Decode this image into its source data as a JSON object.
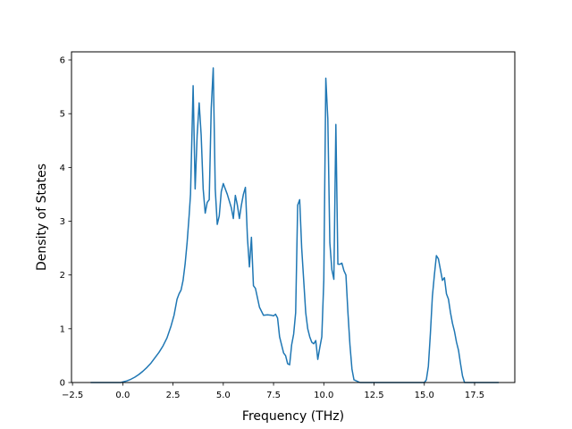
{
  "chart_data": {
    "type": "line",
    "title": "",
    "xlabel": "Frequency (THz)",
    "ylabel": "Density of States",
    "xlim": [
      -2.55,
      19.5
    ],
    "ylim": [
      0,
      6.15
    ],
    "grid": false,
    "legend": "none",
    "line_color": "#1f77b4",
    "xticks": [
      -2.5,
      0.0,
      2.5,
      5.0,
      7.5,
      10.0,
      12.5,
      15.0,
      17.5
    ],
    "xtick_labels": [
      "−2.5",
      "0.0",
      "2.5",
      "5.0",
      "7.5",
      "10.0",
      "12.5",
      "15.0",
      "17.5"
    ],
    "yticks": [
      0,
      1,
      2,
      3,
      4,
      5,
      6
    ],
    "ytick_labels": [
      "0",
      "1",
      "2",
      "3",
      "4",
      "5",
      "6"
    ],
    "series": [
      {
        "x": [
          -1.6,
          -1.0,
          -0.5,
          -0.1,
          0.0,
          0.2,
          0.4,
          0.6,
          0.8,
          1.0,
          1.2,
          1.4,
          1.6,
          1.8,
          2.0,
          2.2,
          2.4,
          2.55,
          2.7,
          2.8,
          2.9,
          3.0,
          3.1,
          3.2,
          3.3,
          3.37,
          3.5,
          3.6,
          3.7,
          3.8,
          3.9,
          4.0,
          4.1,
          4.2,
          4.3,
          4.4,
          4.5,
          4.6,
          4.7,
          4.8,
          4.9,
          5.0,
          5.2,
          5.4,
          5.5,
          5.6,
          5.7,
          5.8,
          5.9,
          6.0,
          6.1,
          6.2,
          6.3,
          6.4,
          6.5,
          6.6,
          6.8,
          7.0,
          7.2,
          7.4,
          7.5,
          7.6,
          7.7,
          7.8,
          7.9,
          8.0,
          8.1,
          8.2,
          8.3,
          8.4,
          8.5,
          8.6,
          8.7,
          8.8,
          8.9,
          9.0,
          9.1,
          9.2,
          9.3,
          9.4,
          9.5,
          9.6,
          9.7,
          9.8,
          9.9,
          10.0,
          10.1,
          10.2,
          10.3,
          10.4,
          10.5,
          10.6,
          10.7,
          10.8,
          10.9,
          11.0,
          11.1,
          11.2,
          11.3,
          11.4,
          11.5,
          11.8,
          12.5,
          13.5,
          14.5,
          15.0,
          15.1,
          15.2,
          15.3,
          15.4,
          15.5,
          15.6,
          15.7,
          15.8,
          15.9,
          16.0,
          16.1,
          16.2,
          16.3,
          16.4,
          16.5,
          16.6,
          16.7,
          16.8,
          16.9,
          17.0,
          17.3,
          18.0,
          18.7
        ],
        "y": [
          0.0,
          0.0,
          0.0,
          0.0,
          0.01,
          0.03,
          0.06,
          0.1,
          0.15,
          0.21,
          0.28,
          0.36,
          0.46,
          0.56,
          0.68,
          0.83,
          1.05,
          1.25,
          1.55,
          1.65,
          1.72,
          1.9,
          2.2,
          2.6,
          3.1,
          3.5,
          5.52,
          3.6,
          4.6,
          5.2,
          4.6,
          3.6,
          3.15,
          3.35,
          3.4,
          5.1,
          5.85,
          3.6,
          2.94,
          3.1,
          3.55,
          3.7,
          3.5,
          3.25,
          3.05,
          3.48,
          3.3,
          3.05,
          3.3,
          3.5,
          3.63,
          2.7,
          2.15,
          2.7,
          1.8,
          1.75,
          1.4,
          1.25,
          1.26,
          1.25,
          1.24,
          1.27,
          1.2,
          0.85,
          0.7,
          0.55,
          0.5,
          0.35,
          0.33,
          0.7,
          0.9,
          1.3,
          3.3,
          3.4,
          2.5,
          1.9,
          1.3,
          1.0,
          0.85,
          0.75,
          0.72,
          0.78,
          0.43,
          0.65,
          0.85,
          1.9,
          5.66,
          4.9,
          2.6,
          2.1,
          1.92,
          4.8,
          2.2,
          2.2,
          2.22,
          2.08,
          2.0,
          1.3,
          0.7,
          0.25,
          0.05,
          0.0,
          0.0,
          0.0,
          0.0,
          0.0,
          0.05,
          0.3,
          0.9,
          1.6,
          2.0,
          2.36,
          2.3,
          2.1,
          1.9,
          1.95,
          1.65,
          1.55,
          1.3,
          1.1,
          0.95,
          0.75,
          0.6,
          0.35,
          0.12,
          0.0,
          0.0,
          0.0,
          0.0
        ]
      }
    ]
  }
}
